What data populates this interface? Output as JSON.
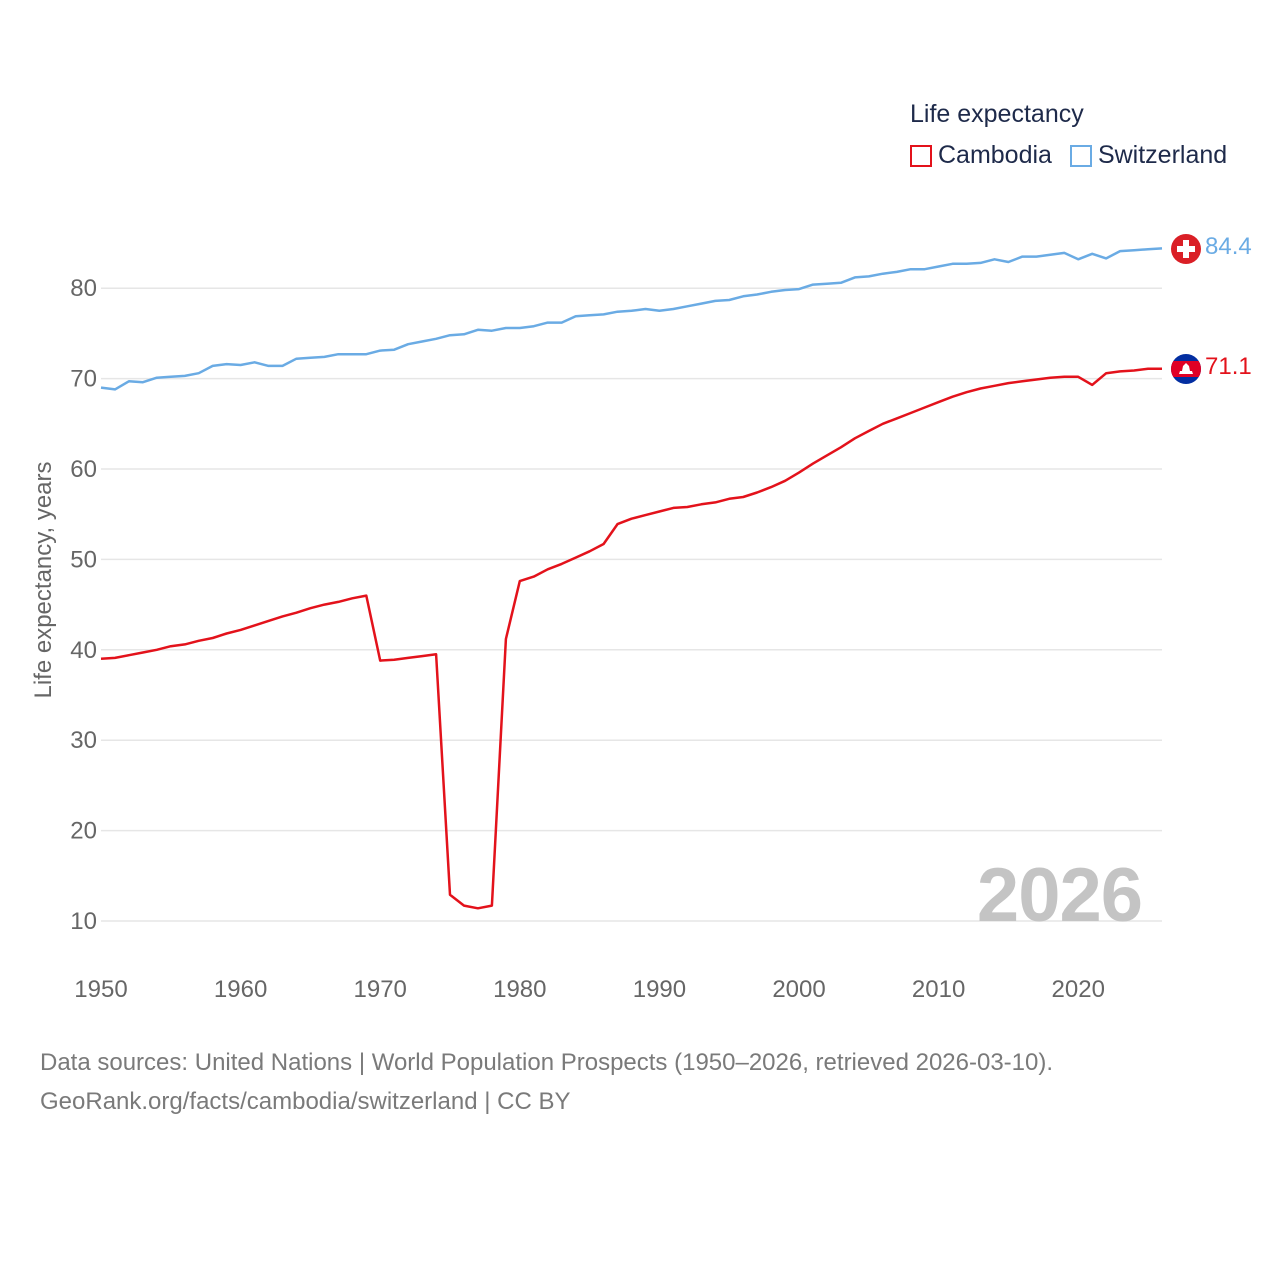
{
  "legend": {
    "title": "Life expectancy",
    "items": [
      {
        "label": "Cambodia",
        "color": "#e3121b"
      },
      {
        "label": "Switzerland",
        "color": "#6aabe4"
      }
    ]
  },
  "year_stamp": "2026",
  "footer": {
    "line1": "Data sources: United Nations | World Population Prospects (1950–2026, retrieved 2026-03-10).",
    "line2": "GeoRank.org/facts/cambodia/switzerland | CC BY"
  },
  "end_labels": {
    "switzerland": "84.4",
    "cambodia": "71.1"
  },
  "chart_data": {
    "type": "line",
    "title": "Life expectancy",
    "xlabel": "",
    "ylabel": "Life expectancy, years",
    "xlim": [
      1950,
      2026
    ],
    "ylim": [
      5,
      90
    ],
    "grid": true,
    "legend_position": "top-right",
    "x_ticks": [
      1950,
      1960,
      1970,
      1980,
      1990,
      2000,
      2010,
      2020
    ],
    "y_ticks": [
      10,
      20,
      30,
      40,
      50,
      60,
      70,
      80
    ],
    "x": [
      1950,
      1951,
      1952,
      1953,
      1954,
      1955,
      1956,
      1957,
      1958,
      1959,
      1960,
      1961,
      1962,
      1963,
      1964,
      1965,
      1966,
      1967,
      1968,
      1969,
      1970,
      1971,
      1972,
      1973,
      1974,
      1975,
      1976,
      1977,
      1978,
      1979,
      1980,
      1981,
      1982,
      1983,
      1984,
      1985,
      1986,
      1987,
      1988,
      1989,
      1990,
      1991,
      1992,
      1993,
      1994,
      1995,
      1996,
      1997,
      1998,
      1999,
      2000,
      2001,
      2002,
      2003,
      2004,
      2005,
      2006,
      2007,
      2008,
      2009,
      2010,
      2011,
      2012,
      2013,
      2014,
      2015,
      2016,
      2017,
      2018,
      2019,
      2020,
      2021,
      2022,
      2023,
      2024,
      2025,
      2026
    ],
    "series": [
      {
        "name": "Cambodia",
        "color": "#e3121b",
        "values": [
          39.0,
          39.1,
          39.4,
          39.7,
          40.0,
          40.4,
          40.6,
          41.0,
          41.3,
          41.8,
          42.2,
          42.7,
          43.2,
          43.7,
          44.1,
          44.6,
          45.0,
          45.3,
          45.7,
          46.0,
          38.8,
          38.9,
          39.1,
          39.3,
          39.5,
          12.9,
          11.7,
          11.4,
          11.7,
          41.2,
          47.6,
          48.1,
          48.9,
          49.5,
          50.2,
          50.9,
          51.7,
          53.9,
          54.5,
          54.9,
          55.3,
          55.7,
          55.8,
          56.1,
          56.3,
          56.7,
          56.9,
          57.4,
          58.0,
          58.7,
          59.6,
          60.6,
          61.5,
          62.4,
          63.4,
          64.2,
          65.0,
          65.6,
          66.2,
          66.8,
          67.4,
          68.0,
          68.5,
          68.9,
          69.2,
          69.5,
          69.7,
          69.9,
          70.1,
          70.2,
          70.2,
          69.3,
          70.6,
          70.8,
          70.9,
          71.1,
          71.1
        ]
      },
      {
        "name": "Switzerland",
        "color": "#6aabe4",
        "values": [
          69.0,
          68.8,
          69.7,
          69.6,
          70.1,
          70.2,
          70.3,
          70.6,
          71.4,
          71.6,
          71.5,
          71.8,
          71.4,
          71.4,
          72.2,
          72.3,
          72.4,
          72.7,
          72.7,
          72.7,
          73.1,
          73.2,
          73.8,
          74.1,
          74.4,
          74.8,
          74.9,
          75.4,
          75.3,
          75.6,
          75.6,
          75.8,
          76.2,
          76.2,
          76.9,
          77.0,
          77.1,
          77.4,
          77.5,
          77.7,
          77.5,
          77.7,
          78.0,
          78.3,
          78.6,
          78.7,
          79.1,
          79.3,
          79.6,
          79.8,
          79.9,
          80.4,
          80.5,
          80.6,
          81.2,
          81.3,
          81.6,
          81.8,
          82.1,
          82.1,
          82.4,
          82.7,
          82.7,
          82.8,
          83.2,
          82.9,
          83.5,
          83.5,
          83.7,
          83.9,
          83.2,
          83.8,
          83.3,
          84.1,
          84.2,
          84.3,
          84.4
        ]
      }
    ]
  }
}
